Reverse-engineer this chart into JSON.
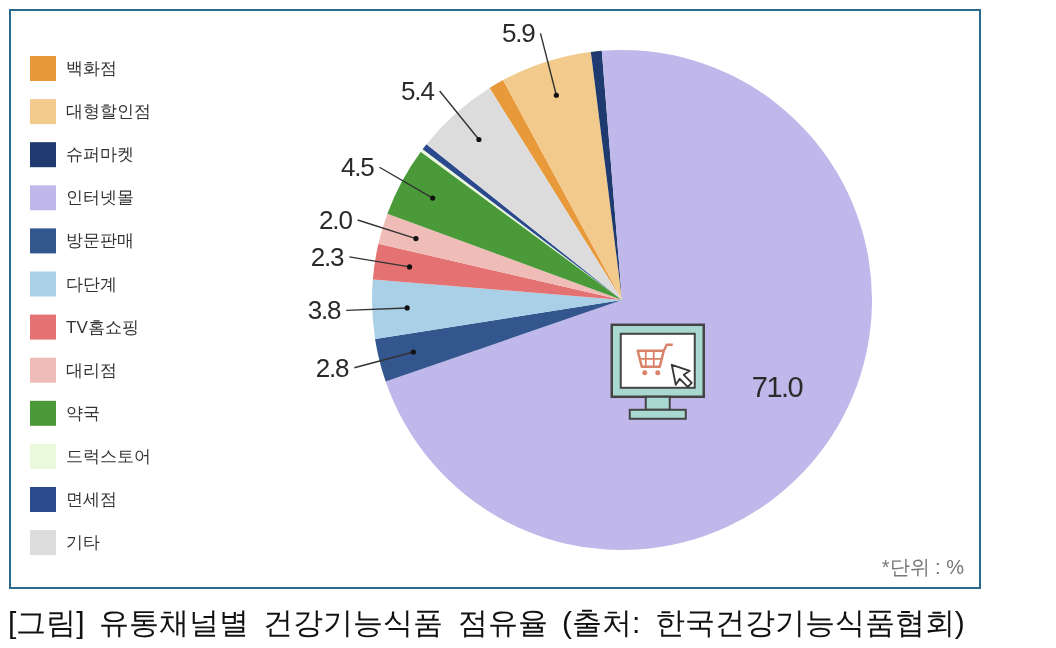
{
  "chart_data": {
    "type": "pie",
    "title": "[그림] 유통채널별 건강기능식품 점유율 (출처: 한국건강기능식품협회)",
    "categories": [
      "백화점",
      "대형할인점",
      "슈퍼마켓",
      "인터넷몰",
      "방문판매",
      "다단계",
      "TV홈쇼핑",
      "대리점",
      "약국",
      "드럭스토어",
      "면세점",
      "기타"
    ],
    "values": [
      1.0,
      5.9,
      0.7,
      71.0,
      2.8,
      3.8,
      2.3,
      2.0,
      4.5,
      0.2,
      0.4,
      5.4
    ],
    "colors": [
      "#e8993a",
      "#f2cb8c",
      "#1f3a6e",
      "#c0b8ea",
      "#33568f",
      "#a9d0e6",
      "#e57272",
      "#f0bcb8",
      "#4a9a3a",
      "#eaf8dc",
      "#2b4a8e",
      "#dcdcdc"
    ],
    "value_labels": [
      null,
      "5.9",
      null,
      "71.0",
      "2.8",
      "3.8",
      "2.3",
      "2.0",
      "4.5",
      null,
      null,
      "5.4"
    ],
    "legend": "left",
    "annotations": [
      "*단위 : %"
    ]
  }
}
